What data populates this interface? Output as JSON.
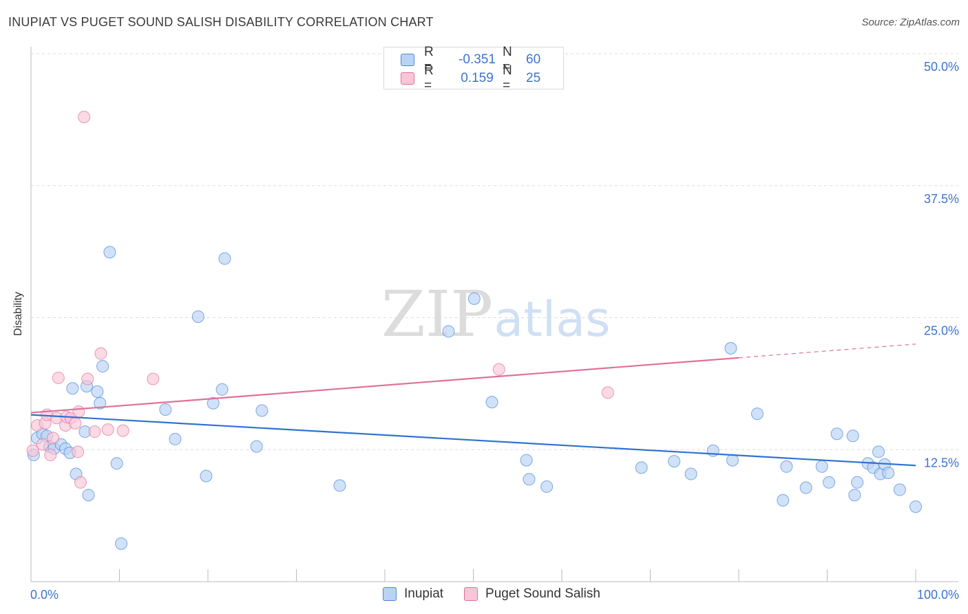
{
  "header": {
    "title": "INUPIAT VS PUGET SOUND SALISH DISABILITY CORRELATION CHART",
    "source": "Source: ZipAtlas.com"
  },
  "watermark": {
    "zip": "ZIP",
    "atlas": "atlas"
  },
  "legend": {
    "series": [
      {
        "swatch_color": "#b9d3f5",
        "r_label": "R =",
        "r_value": "-0.351",
        "n_label": "N =",
        "n_value": "60"
      },
      {
        "swatch_color": "#f8c6d6",
        "r_label": "R =",
        "r_value": "0.159",
        "n_label": "N =",
        "n_value": "25"
      }
    ]
  },
  "chart_data": {
    "type": "scatter",
    "title": "INUPIAT VS PUGET SOUND SALISH DISABILITY CORRELATION CHART",
    "xlabel": "",
    "ylabel": "Disability",
    "xlim": [
      0,
      100
    ],
    "ylim": [
      0,
      50
    ],
    "x_tick_labels": [
      "0.0%",
      "100.0%"
    ],
    "y_ticks": [
      12.5,
      25.0,
      37.5,
      50.0
    ],
    "y_tick_labels": [
      "12.5%",
      "25.0%",
      "37.5%",
      "50.0%"
    ],
    "grid": true,
    "legend_position": "top-center",
    "series": [
      {
        "name": "Inupiat",
        "color": "#4a86d8",
        "fill": "#b9d3f5",
        "trendline": {
          "x": [
            0,
            100
          ],
          "y": [
            15.8,
            11.0
          ],
          "style": "solid"
        },
        "points": [
          [
            0.3,
            12.0
          ],
          [
            0.7,
            13.6
          ],
          [
            1.3,
            14.0
          ],
          [
            1.8,
            13.8
          ],
          [
            2.1,
            12.8
          ],
          [
            2.6,
            12.6
          ],
          [
            3.4,
            13.0
          ],
          [
            3.9,
            12.6
          ],
          [
            4.4,
            12.2
          ],
          [
            4.7,
            18.3
          ],
          [
            5.1,
            10.2
          ],
          [
            6.1,
            14.2
          ],
          [
            6.3,
            18.5
          ],
          [
            6.5,
            8.2
          ],
          [
            7.5,
            18.0
          ],
          [
            7.8,
            16.9
          ],
          [
            8.1,
            20.4
          ],
          [
            8.9,
            31.2
          ],
          [
            9.7,
            11.2
          ],
          [
            10.2,
            3.6
          ],
          [
            15.2,
            16.3
          ],
          [
            16.3,
            13.5
          ],
          [
            18.9,
            25.1
          ],
          [
            19.8,
            10.0
          ],
          [
            20.6,
            16.9
          ],
          [
            21.6,
            18.2
          ],
          [
            21.9,
            30.6
          ],
          [
            25.5,
            12.8
          ],
          [
            26.1,
            16.2
          ],
          [
            34.9,
            9.1
          ],
          [
            47.2,
            23.7
          ],
          [
            50.1,
            26.8
          ],
          [
            52.1,
            17.0
          ],
          [
            56.0,
            11.5
          ],
          [
            56.3,
            9.7
          ],
          [
            58.3,
            9.0
          ],
          [
            69.0,
            10.8
          ],
          [
            72.7,
            11.4
          ],
          [
            74.6,
            10.2
          ],
          [
            77.1,
            12.4
          ],
          [
            79.3,
            11.5
          ],
          [
            79.1,
            22.1
          ],
          [
            82.1,
            15.9
          ],
          [
            85.0,
            7.7
          ],
          [
            85.4,
            10.9
          ],
          [
            87.6,
            8.9
          ],
          [
            89.4,
            10.9
          ],
          [
            90.2,
            9.4
          ],
          [
            91.1,
            14.0
          ],
          [
            92.9,
            13.8
          ],
          [
            93.1,
            8.2
          ],
          [
            93.4,
            9.4
          ],
          [
            94.6,
            11.2
          ],
          [
            95.2,
            10.8
          ],
          [
            95.8,
            12.3
          ],
          [
            96.0,
            10.2
          ],
          [
            96.5,
            11.1
          ],
          [
            96.9,
            10.3
          ],
          [
            98.2,
            8.7
          ],
          [
            100.0,
            7.1
          ]
        ]
      },
      {
        "name": "Puget Sound Salish",
        "color": "#e0709a",
        "fill": "#f8c6d6",
        "trendline": {
          "x": [
            0,
            100
          ],
          "y": [
            16.0,
            22.5
          ],
          "solid_until": 80
        },
        "points": [
          [
            0.2,
            12.4
          ],
          [
            0.7,
            14.8
          ],
          [
            1.3,
            13.0
          ],
          [
            1.6,
            15.0
          ],
          [
            1.8,
            15.8
          ],
          [
            2.2,
            12.0
          ],
          [
            2.5,
            13.6
          ],
          [
            2.9,
            15.5
          ],
          [
            3.1,
            19.3
          ],
          [
            3.9,
            14.8
          ],
          [
            4.0,
            15.6
          ],
          [
            4.5,
            15.5
          ],
          [
            5.3,
            12.3
          ],
          [
            5.4,
            16.1
          ],
          [
            5.6,
            9.4
          ],
          [
            6.0,
            44.0
          ],
          [
            6.4,
            19.2
          ],
          [
            7.2,
            14.2
          ],
          [
            7.9,
            21.6
          ],
          [
            8.7,
            14.4
          ],
          [
            10.4,
            14.3
          ],
          [
            13.8,
            19.2
          ],
          [
            52.9,
            20.1
          ],
          [
            65.2,
            17.9
          ],
          [
            5.0,
            15.0
          ]
        ]
      }
    ]
  }
}
